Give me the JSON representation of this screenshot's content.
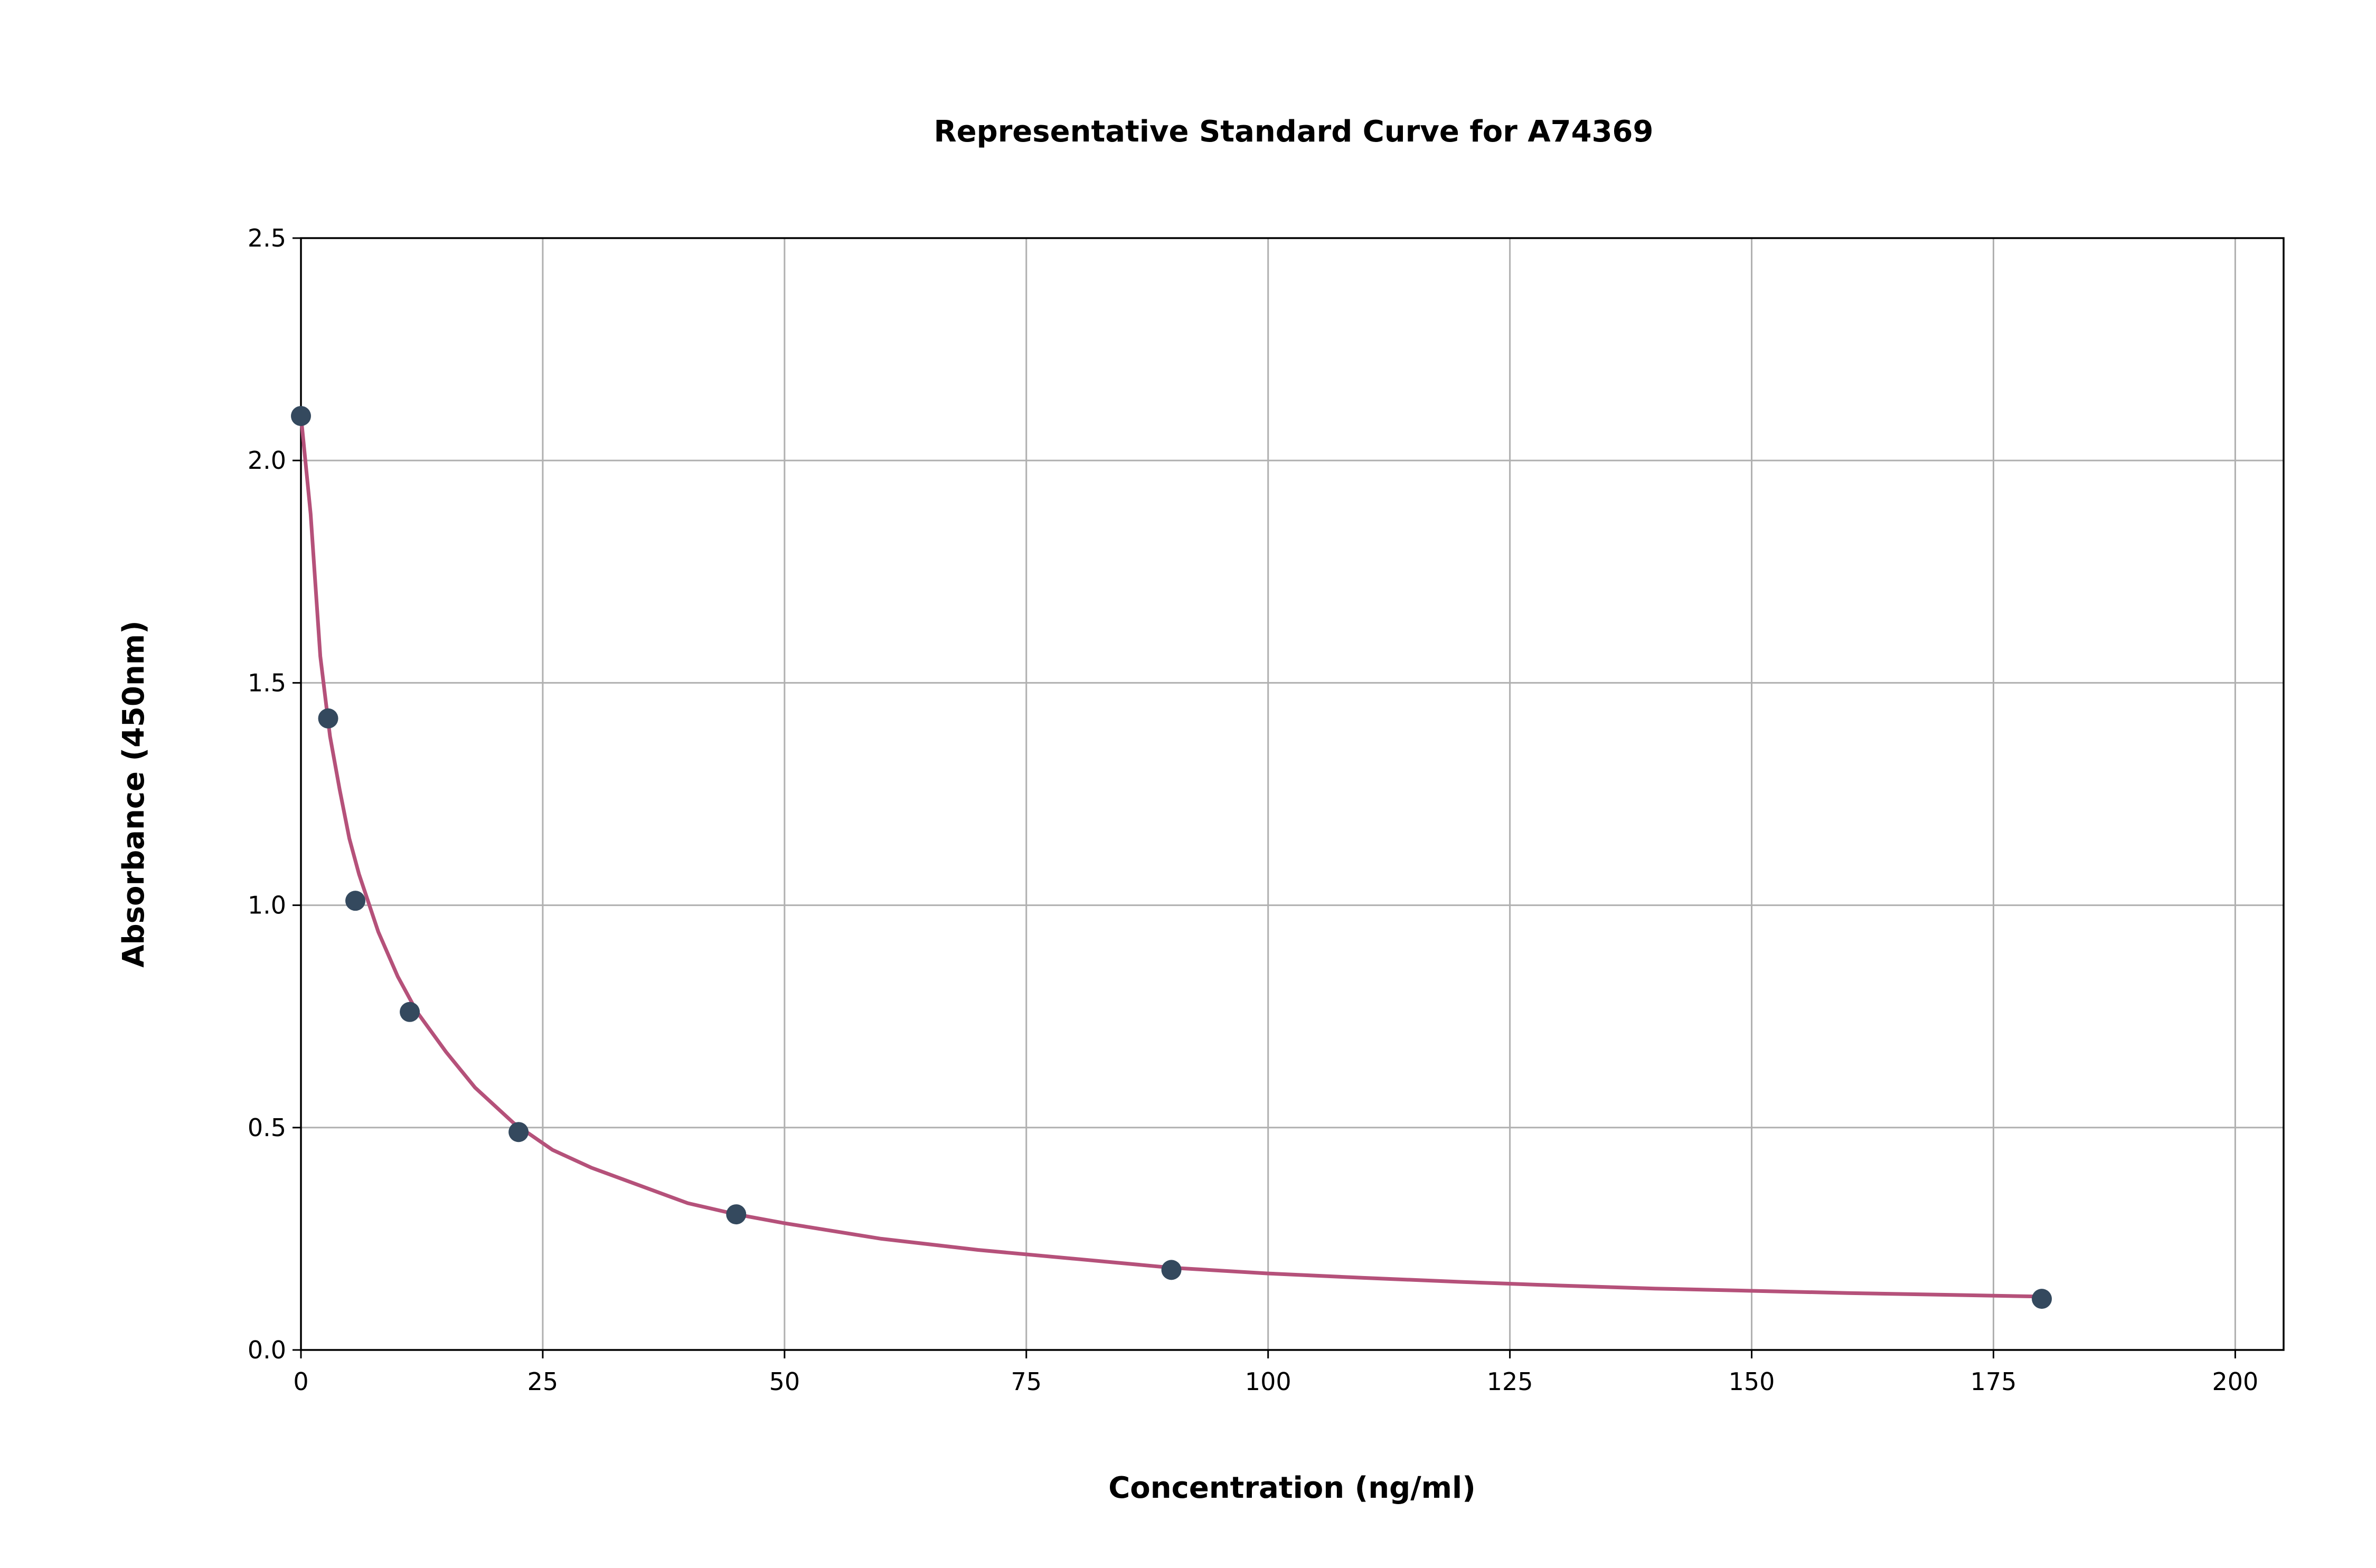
{
  "chart_data": {
    "type": "scatter",
    "title": "Representative Standard Curve for A74369",
    "xlabel": "Concentration (ng/ml)",
    "ylabel": "Absorbance (450nm)",
    "xlim": [
      0,
      205
    ],
    "ylim": [
      0,
      2.5
    ],
    "xticks": [
      0,
      25,
      50,
      75,
      100,
      125,
      150,
      175,
      200
    ],
    "xtick_labels": [
      "0",
      "25",
      "50",
      "75",
      "100",
      "125",
      "150",
      "175",
      "200"
    ],
    "yticks": [
      0,
      0.5,
      1.0,
      1.5,
      2.0,
      2.5
    ],
    "ytick_labels": [
      "0.0",
      "0.5",
      "1.0",
      "1.5",
      "2.0",
      "2.5"
    ],
    "grid": true,
    "legend": "none",
    "series": [
      {
        "kind": "points",
        "color": "#34495e",
        "x": [
          0,
          2.8125,
          5.625,
          11.25,
          22.5,
          45,
          90,
          180
        ],
        "y": [
          2.1,
          1.42,
          1.01,
          0.76,
          0.49,
          0.305,
          0.18,
          0.115
        ]
      },
      {
        "kind": "fitted-curve",
        "color": "#b5517a",
        "x": [
          0,
          1,
          2,
          3,
          4,
          5,
          6,
          8,
          10,
          12,
          15,
          18,
          22,
          26,
          30,
          35,
          40,
          45,
          50,
          60,
          70,
          80,
          90,
          100,
          110,
          120,
          130,
          140,
          150,
          160,
          170,
          180
        ],
        "y": [
          2.1,
          1.88,
          1.56,
          1.38,
          1.26,
          1.15,
          1.07,
          0.94,
          0.84,
          0.76,
          0.67,
          0.59,
          0.51,
          0.45,
          0.41,
          0.37,
          0.33,
          0.305,
          0.285,
          0.25,
          0.225,
          0.205,
          0.185,
          0.172,
          0.162,
          0.153,
          0.145,
          0.138,
          0.133,
          0.128,
          0.124,
          0.12
        ]
      }
    ]
  }
}
